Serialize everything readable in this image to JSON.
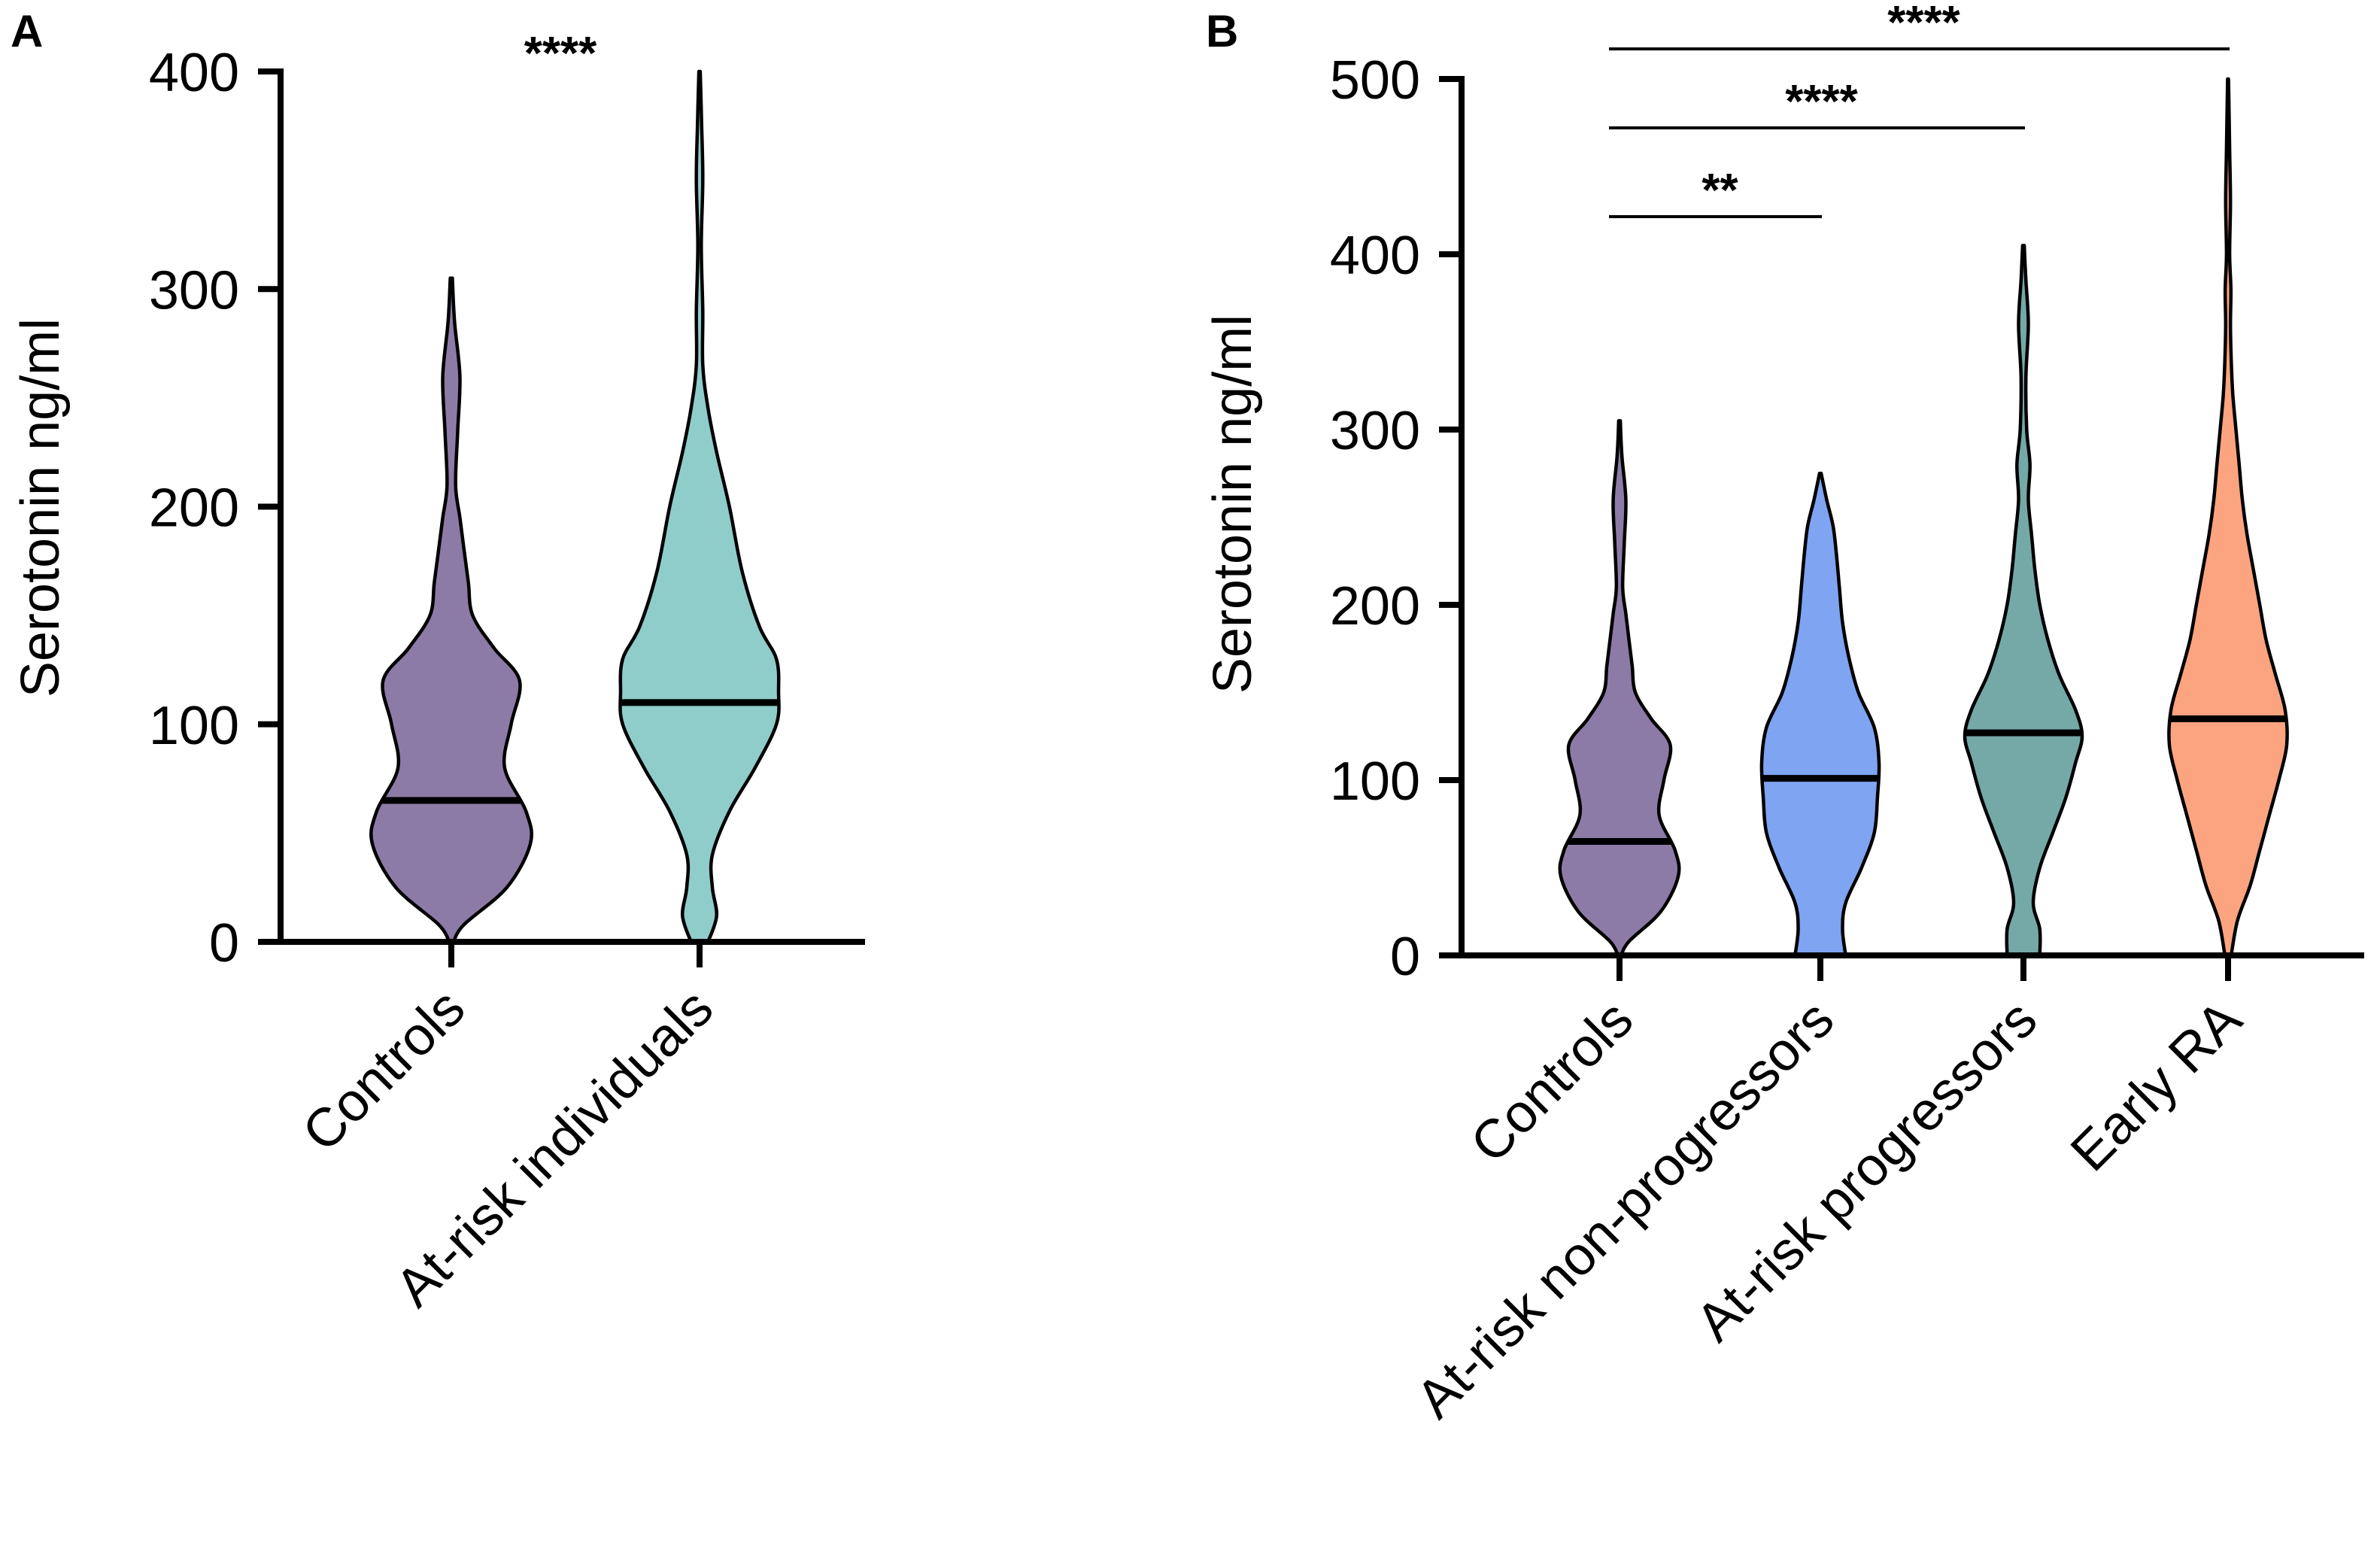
{
  "chart_data": [
    {
      "panel_label": "A",
      "type": "violin",
      "ylabel": "Serotonin ng/ml",
      "ylim": [
        0,
        400
      ],
      "yticks": [
        0,
        100,
        200,
        300,
        400
      ],
      "categories": [
        "Controls",
        "At-risk individuals"
      ],
      "series": [
        {
          "name": "Controls",
          "color": "#8c7ba6",
          "median": 65,
          "min": 0,
          "max": 305,
          "density": [
            [
              0,
              1
            ],
            [
              8,
              6
            ],
            [
              25,
              26
            ],
            [
              45,
              37
            ],
            [
              60,
              35
            ],
            [
              80,
              25
            ],
            [
              100,
              28
            ],
            [
              120,
              32
            ],
            [
              135,
              20
            ],
            [
              150,
              10
            ],
            [
              165,
              8
            ],
            [
              180,
              6
            ],
            [
              195,
              4
            ],
            [
              210,
              2
            ],
            [
              235,
              3
            ],
            [
              260,
              4
            ],
            [
              285,
              1.5
            ],
            [
              305,
              0.5
            ]
          ]
        },
        {
          "name": "At-risk individuals",
          "color": "#8fcdcb",
          "median": 110,
          "min": 0,
          "max": 400,
          "density": [
            [
              0,
              4
            ],
            [
              12,
              8
            ],
            [
              25,
              6
            ],
            [
              40,
              6
            ],
            [
              60,
              14
            ],
            [
              80,
              26
            ],
            [
              100,
              36
            ],
            [
              115,
              37
            ],
            [
              130,
              36
            ],
            [
              145,
              28
            ],
            [
              170,
              20
            ],
            [
              200,
              14
            ],
            [
              225,
              8
            ],
            [
              245,
              4
            ],
            [
              265,
              1.5
            ],
            [
              290,
              1.5
            ],
            [
              320,
              0.8
            ],
            [
              350,
              1.5
            ],
            [
              375,
              1
            ],
            [
              400,
              0.3
            ]
          ]
        }
      ],
      "significance": [
        {
          "label": "****",
          "between": [
            "Controls",
            "At-risk individuals"
          ]
        }
      ]
    },
    {
      "panel_label": "B",
      "type": "violin",
      "ylabel": "Serotonin ng/ml",
      "ylim": [
        0,
        500
      ],
      "yticks": [
        0,
        100,
        200,
        300,
        400,
        500
      ],
      "categories": [
        "Controls",
        "At-risk non-progressors",
        "At-risk progressors",
        "Early RA"
      ],
      "series": [
        {
          "name": "Controls",
          "color": "#8c7ba6",
          "median": 65,
          "min": 0,
          "max": 305,
          "density": [
            [
              0,
              1
            ],
            [
              8,
              6
            ],
            [
              25,
              26
            ],
            [
              45,
              37
            ],
            [
              60,
              35
            ],
            [
              80,
              25
            ],
            [
              100,
              28
            ],
            [
              120,
              32
            ],
            [
              135,
              20
            ],
            [
              150,
              10
            ],
            [
              165,
              8
            ],
            [
              180,
              6
            ],
            [
              195,
              4
            ],
            [
              210,
              2
            ],
            [
              235,
              3
            ],
            [
              260,
              4
            ],
            [
              285,
              1.5
            ],
            [
              305,
              0.5
            ]
          ]
        },
        {
          "name": "At-risk non-progressors",
          "color": "#7ea4f2",
          "median": 101,
          "min": 0,
          "max": 275,
          "density": [
            [
              0,
              16
            ],
            [
              15,
              14
            ],
            [
              30,
              16
            ],
            [
              50,
              26
            ],
            [
              70,
              34
            ],
            [
              90,
              36
            ],
            [
              110,
              37
            ],
            [
              130,
              34
            ],
            [
              150,
              24
            ],
            [
              170,
              18
            ],
            [
              190,
              14
            ],
            [
              210,
              12
            ],
            [
              230,
              10
            ],
            [
              245,
              8
            ],
            [
              260,
              4
            ],
            [
              275,
              0.5
            ]
          ]
        },
        {
          "name": "At-risk progressors",
          "color": "#74a9a8",
          "median": 127,
          "min": 0,
          "max": 405,
          "density": [
            [
              0,
              10
            ],
            [
              15,
              10
            ],
            [
              30,
              6
            ],
            [
              50,
              10
            ],
            [
              70,
              18
            ],
            [
              90,
              26
            ],
            [
              110,
              32
            ],
            [
              125,
              36
            ],
            [
              140,
              32
            ],
            [
              160,
              22
            ],
            [
              180,
              15
            ],
            [
              200,
              10
            ],
            [
              220,
              7
            ],
            [
              240,
              5
            ],
            [
              260,
              3
            ],
            [
              280,
              4
            ],
            [
              300,
              2
            ],
            [
              330,
              1.5
            ],
            [
              360,
              3
            ],
            [
              385,
              1.5
            ],
            [
              405,
              0.5
            ]
          ]
        },
        {
          "name": "Early RA",
          "color": "#fba47f",
          "median": 135,
          "min": 0,
          "max": 500,
          "density": [
            [
              0,
              2
            ],
            [
              20,
              6
            ],
            [
              40,
              14
            ],
            [
              60,
              20
            ],
            [
              80,
              26
            ],
            [
              100,
              32
            ],
            [
              120,
              37
            ],
            [
              140,
              36
            ],
            [
              160,
              30
            ],
            [
              180,
              24
            ],
            [
              200,
              20
            ],
            [
              220,
              16
            ],
            [
              240,
              12
            ],
            [
              260,
              9
            ],
            [
              280,
              7
            ],
            [
              300,
              5
            ],
            [
              320,
              3
            ],
            [
              340,
              2
            ],
            [
              360,
              1.5
            ],
            [
              380,
              1.8
            ],
            [
              400,
              1
            ],
            [
              430,
              1.5
            ],
            [
              460,
              1
            ],
            [
              500,
              0.3
            ]
          ]
        }
      ],
      "significance": [
        {
          "label": "**",
          "between": [
            "Controls",
            "At-risk non-progressors"
          ]
        },
        {
          "label": "****",
          "between": [
            "Controls",
            "At-risk progressors"
          ]
        },
        {
          "label": "****",
          "between": [
            "Controls",
            "Early RA"
          ]
        }
      ]
    }
  ]
}
